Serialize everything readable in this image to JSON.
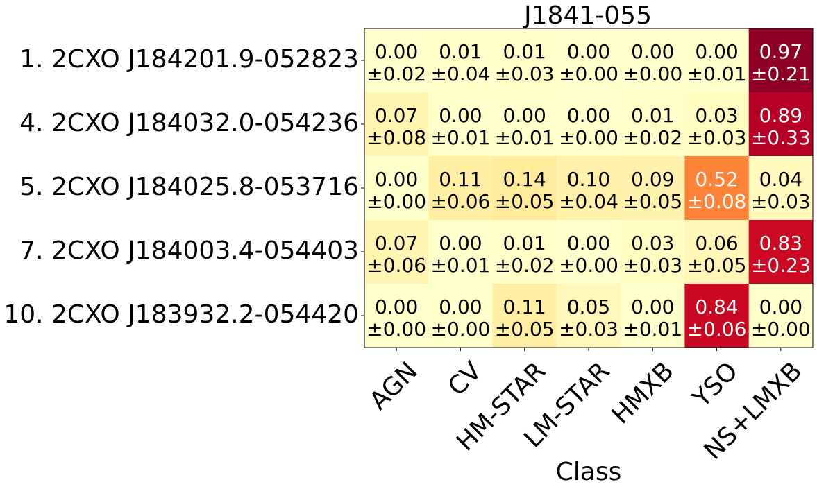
{
  "chart_data": {
    "type": "heatmap",
    "title": "J1841-055",
    "xlabel": "Class",
    "ylabel": "",
    "x_categories": [
      "AGN",
      "CV",
      "HM-STAR",
      "LM-STAR",
      "HMXB",
      "YSO",
      "NS+LMXB"
    ],
    "y_categories": [
      "1. 2CXO J184201.9-052823",
      "4. 2CXO J184032.0-054236",
      "5. 2CXO J184025.8-053716",
      "7. 2CXO J184003.4-054403",
      "10. 2CXO J183932.2-054420"
    ],
    "values": [
      [
        0.0,
        0.01,
        0.01,
        0.0,
        0.0,
        0.0,
        0.97
      ],
      [
        0.07,
        0.0,
        0.0,
        0.0,
        0.01,
        0.03,
        0.89
      ],
      [
        0.0,
        0.11,
        0.14,
        0.1,
        0.09,
        0.52,
        0.04
      ],
      [
        0.07,
        0.0,
        0.01,
        0.0,
        0.03,
        0.06,
        0.83
      ],
      [
        0.0,
        0.0,
        0.11,
        0.05,
        0.0,
        0.84,
        0.0
      ]
    ],
    "errors": [
      [
        0.02,
        0.04,
        0.03,
        0.0,
        0.0,
        0.01,
        0.21
      ],
      [
        0.08,
        0.01,
        0.01,
        0.0,
        0.02,
        0.03,
        0.33
      ],
      [
        0.0,
        0.06,
        0.05,
        0.04,
        0.05,
        0.08,
        0.03
      ],
      [
        0.06,
        0.01,
        0.02,
        0.0,
        0.03,
        0.05,
        0.23
      ],
      [
        0.0,
        0.0,
        0.05,
        0.03,
        0.01,
        0.06,
        0.0
      ]
    ],
    "value_range": [
      0,
      1
    ],
    "colormap": "YlOrRd",
    "grid": false,
    "legend": "none"
  }
}
